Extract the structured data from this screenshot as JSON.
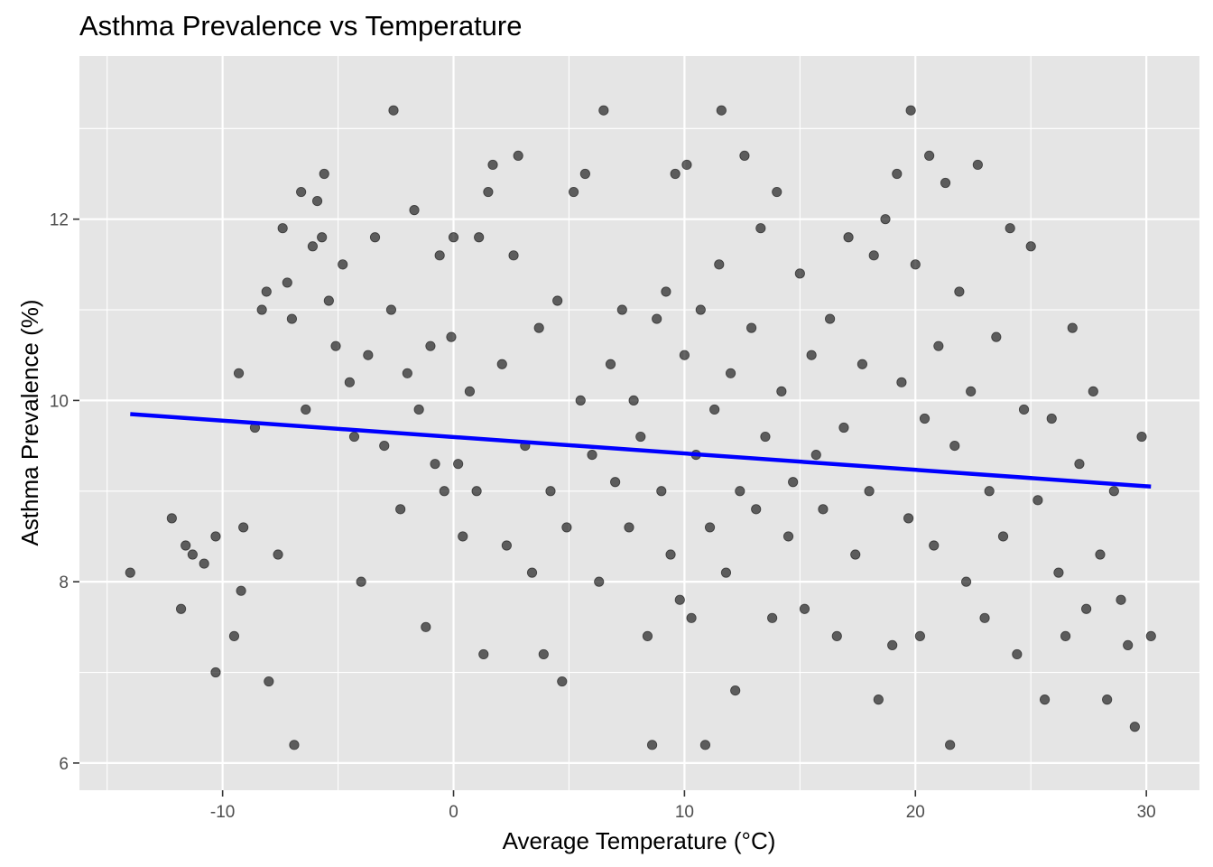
{
  "chart_data": {
    "type": "scatter",
    "title": "Asthma Prevalence vs Temperature",
    "xlabel": "Average Temperature (°C)",
    "ylabel": "Asthma Prevalence (%)",
    "xlim": [
      -16.2,
      32.3
    ],
    "ylim": [
      5.7,
      13.8
    ],
    "x_ticks": [
      -10,
      0,
      10,
      20,
      30
    ],
    "x_tick_labels": [
      "-10",
      "0",
      "10",
      "20",
      "30"
    ],
    "y_ticks": [
      6,
      8,
      10,
      12
    ],
    "y_tick_labels": [
      "6",
      "8",
      "10",
      "12"
    ],
    "grid": true,
    "point_color": "#000000",
    "point_opacity": 0.6,
    "panel_color": "#e5e5e5",
    "grid_color": "#ffffff",
    "trend_color": "#0000ff",
    "series": [
      {
        "points": [
          [
            -14,
            8.1
          ],
          [
            -12.2,
            8.7
          ],
          [
            -11.8,
            7.7
          ],
          [
            -11.6,
            8.4
          ],
          [
            -11.3,
            8.3
          ],
          [
            -10.8,
            8.2
          ],
          [
            -10.3,
            8.5
          ],
          [
            -10.3,
            7.0
          ],
          [
            -9.5,
            7.4
          ],
          [
            -9.3,
            10.3
          ],
          [
            -9.2,
            7.9
          ],
          [
            -9.1,
            8.6
          ],
          [
            -8.6,
            9.7
          ],
          [
            -8.3,
            11.0
          ],
          [
            -8.1,
            11.2
          ],
          [
            -8.0,
            6.9
          ],
          [
            -7.6,
            8.3
          ],
          [
            -7.4,
            11.9
          ],
          [
            -7.2,
            11.3
          ],
          [
            -7.0,
            10.9
          ],
          [
            -6.9,
            6.2
          ],
          [
            -6.6,
            12.3
          ],
          [
            -6.4,
            9.9
          ],
          [
            -6.1,
            11.7
          ],
          [
            -5.9,
            12.2
          ],
          [
            -5.7,
            11.8
          ],
          [
            -5.6,
            12.5
          ],
          [
            -5.4,
            11.1
          ],
          [
            -5.1,
            10.6
          ],
          [
            -4.8,
            11.5
          ],
          [
            -4.5,
            10.2
          ],
          [
            -4.3,
            9.6
          ],
          [
            -4.0,
            8.0
          ],
          [
            -3.7,
            10.5
          ],
          [
            -3.4,
            11.8
          ],
          [
            -3.0,
            9.5
          ],
          [
            -2.7,
            11.0
          ],
          [
            -2.6,
            13.2
          ],
          [
            -2.3,
            8.8
          ],
          [
            -2.0,
            10.3
          ],
          [
            -1.7,
            12.1
          ],
          [
            -1.5,
            9.9
          ],
          [
            -1.2,
            7.5
          ],
          [
            -1.0,
            10.6
          ],
          [
            -0.8,
            9.3
          ],
          [
            -0.6,
            11.6
          ],
          [
            -0.4,
            9.0
          ],
          [
            -0.1,
            10.7
          ],
          [
            0.0,
            11.8
          ],
          [
            0.2,
            9.3
          ],
          [
            0.4,
            8.5
          ],
          [
            0.7,
            10.1
          ],
          [
            1.0,
            9.0
          ],
          [
            1.1,
            11.8
          ],
          [
            1.3,
            7.2
          ],
          [
            1.5,
            12.3
          ],
          [
            1.7,
            12.6
          ],
          [
            2.1,
            10.4
          ],
          [
            2.3,
            8.4
          ],
          [
            2.6,
            11.6
          ],
          [
            2.8,
            12.7
          ],
          [
            3.1,
            9.5
          ],
          [
            3.4,
            8.1
          ],
          [
            3.7,
            10.8
          ],
          [
            3.9,
            7.2
          ],
          [
            4.2,
            9.0
          ],
          [
            4.5,
            11.1
          ],
          [
            4.7,
            6.9
          ],
          [
            4.9,
            8.6
          ],
          [
            5.2,
            12.3
          ],
          [
            5.5,
            10.0
          ],
          [
            5.7,
            12.5
          ],
          [
            6.0,
            9.4
          ],
          [
            6.3,
            8.0
          ],
          [
            6.5,
            13.2
          ],
          [
            6.8,
            10.4
          ],
          [
            7.0,
            9.1
          ],
          [
            7.3,
            11.0
          ],
          [
            7.6,
            8.6
          ],
          [
            7.8,
            10.0
          ],
          [
            8.1,
            9.6
          ],
          [
            8.4,
            7.4
          ],
          [
            8.6,
            6.2
          ],
          [
            8.8,
            10.9
          ],
          [
            9.0,
            9.0
          ],
          [
            9.2,
            11.2
          ],
          [
            9.4,
            8.3
          ],
          [
            9.6,
            12.5
          ],
          [
            9.8,
            7.8
          ],
          [
            10.0,
            10.5
          ],
          [
            10.1,
            12.6
          ],
          [
            10.3,
            7.6
          ],
          [
            10.5,
            9.4
          ],
          [
            10.7,
            11.0
          ],
          [
            10.9,
            6.2
          ],
          [
            11.1,
            8.6
          ],
          [
            11.3,
            9.9
          ],
          [
            11.5,
            11.5
          ],
          [
            11.6,
            13.2
          ],
          [
            11.8,
            8.1
          ],
          [
            12.0,
            10.3
          ],
          [
            12.2,
            6.8
          ],
          [
            12.4,
            9.0
          ],
          [
            12.6,
            12.7
          ],
          [
            12.9,
            10.8
          ],
          [
            13.1,
            8.8
          ],
          [
            13.3,
            11.9
          ],
          [
            13.5,
            9.6
          ],
          [
            13.8,
            7.6
          ],
          [
            14.0,
            12.3
          ],
          [
            14.2,
            10.1
          ],
          [
            14.5,
            8.5
          ],
          [
            14.7,
            9.1
          ],
          [
            15.0,
            11.4
          ],
          [
            15.2,
            7.7
          ],
          [
            15.5,
            10.5
          ],
          [
            15.7,
            9.4
          ],
          [
            16.0,
            8.8
          ],
          [
            16.3,
            10.9
          ],
          [
            16.6,
            7.4
          ],
          [
            16.9,
            9.7
          ],
          [
            17.1,
            11.8
          ],
          [
            17.4,
            8.3
          ],
          [
            17.7,
            10.4
          ],
          [
            18.0,
            9.0
          ],
          [
            18.2,
            11.6
          ],
          [
            18.4,
            6.7
          ],
          [
            18.7,
            12.0
          ],
          [
            19.0,
            7.3
          ],
          [
            19.2,
            12.5
          ],
          [
            19.4,
            10.2
          ],
          [
            19.7,
            8.7
          ],
          [
            19.8,
            13.2
          ],
          [
            20.0,
            11.5
          ],
          [
            20.2,
            7.4
          ],
          [
            20.4,
            9.8
          ],
          [
            20.6,
            12.7
          ],
          [
            20.8,
            8.4
          ],
          [
            21.0,
            10.6
          ],
          [
            21.3,
            12.4
          ],
          [
            21.5,
            6.2
          ],
          [
            21.7,
            9.5
          ],
          [
            21.9,
            11.2
          ],
          [
            22.2,
            8.0
          ],
          [
            22.4,
            10.1
          ],
          [
            22.7,
            12.6
          ],
          [
            23.0,
            7.6
          ],
          [
            23.2,
            9.0
          ],
          [
            23.5,
            10.7
          ],
          [
            23.8,
            8.5
          ],
          [
            24.1,
            11.9
          ],
          [
            24.4,
            7.2
          ],
          [
            24.7,
            9.9
          ],
          [
            25.0,
            11.7
          ],
          [
            25.3,
            8.9
          ],
          [
            25.6,
            6.7
          ],
          [
            25.9,
            9.8
          ],
          [
            26.2,
            8.1
          ],
          [
            26.5,
            7.4
          ],
          [
            26.8,
            10.8
          ],
          [
            27.1,
            9.3
          ],
          [
            27.4,
            7.7
          ],
          [
            27.7,
            10.1
          ],
          [
            28.0,
            8.3
          ],
          [
            28.3,
            6.7
          ],
          [
            28.6,
            9.0
          ],
          [
            28.9,
            7.8
          ],
          [
            29.2,
            7.3
          ],
          [
            29.5,
            6.4
          ],
          [
            29.8,
            9.6
          ],
          [
            30.2,
            7.4
          ]
        ]
      }
    ],
    "trend_line": {
      "x": [
        -14.0,
        30.2
      ],
      "y": [
        9.85,
        9.05
      ]
    }
  }
}
